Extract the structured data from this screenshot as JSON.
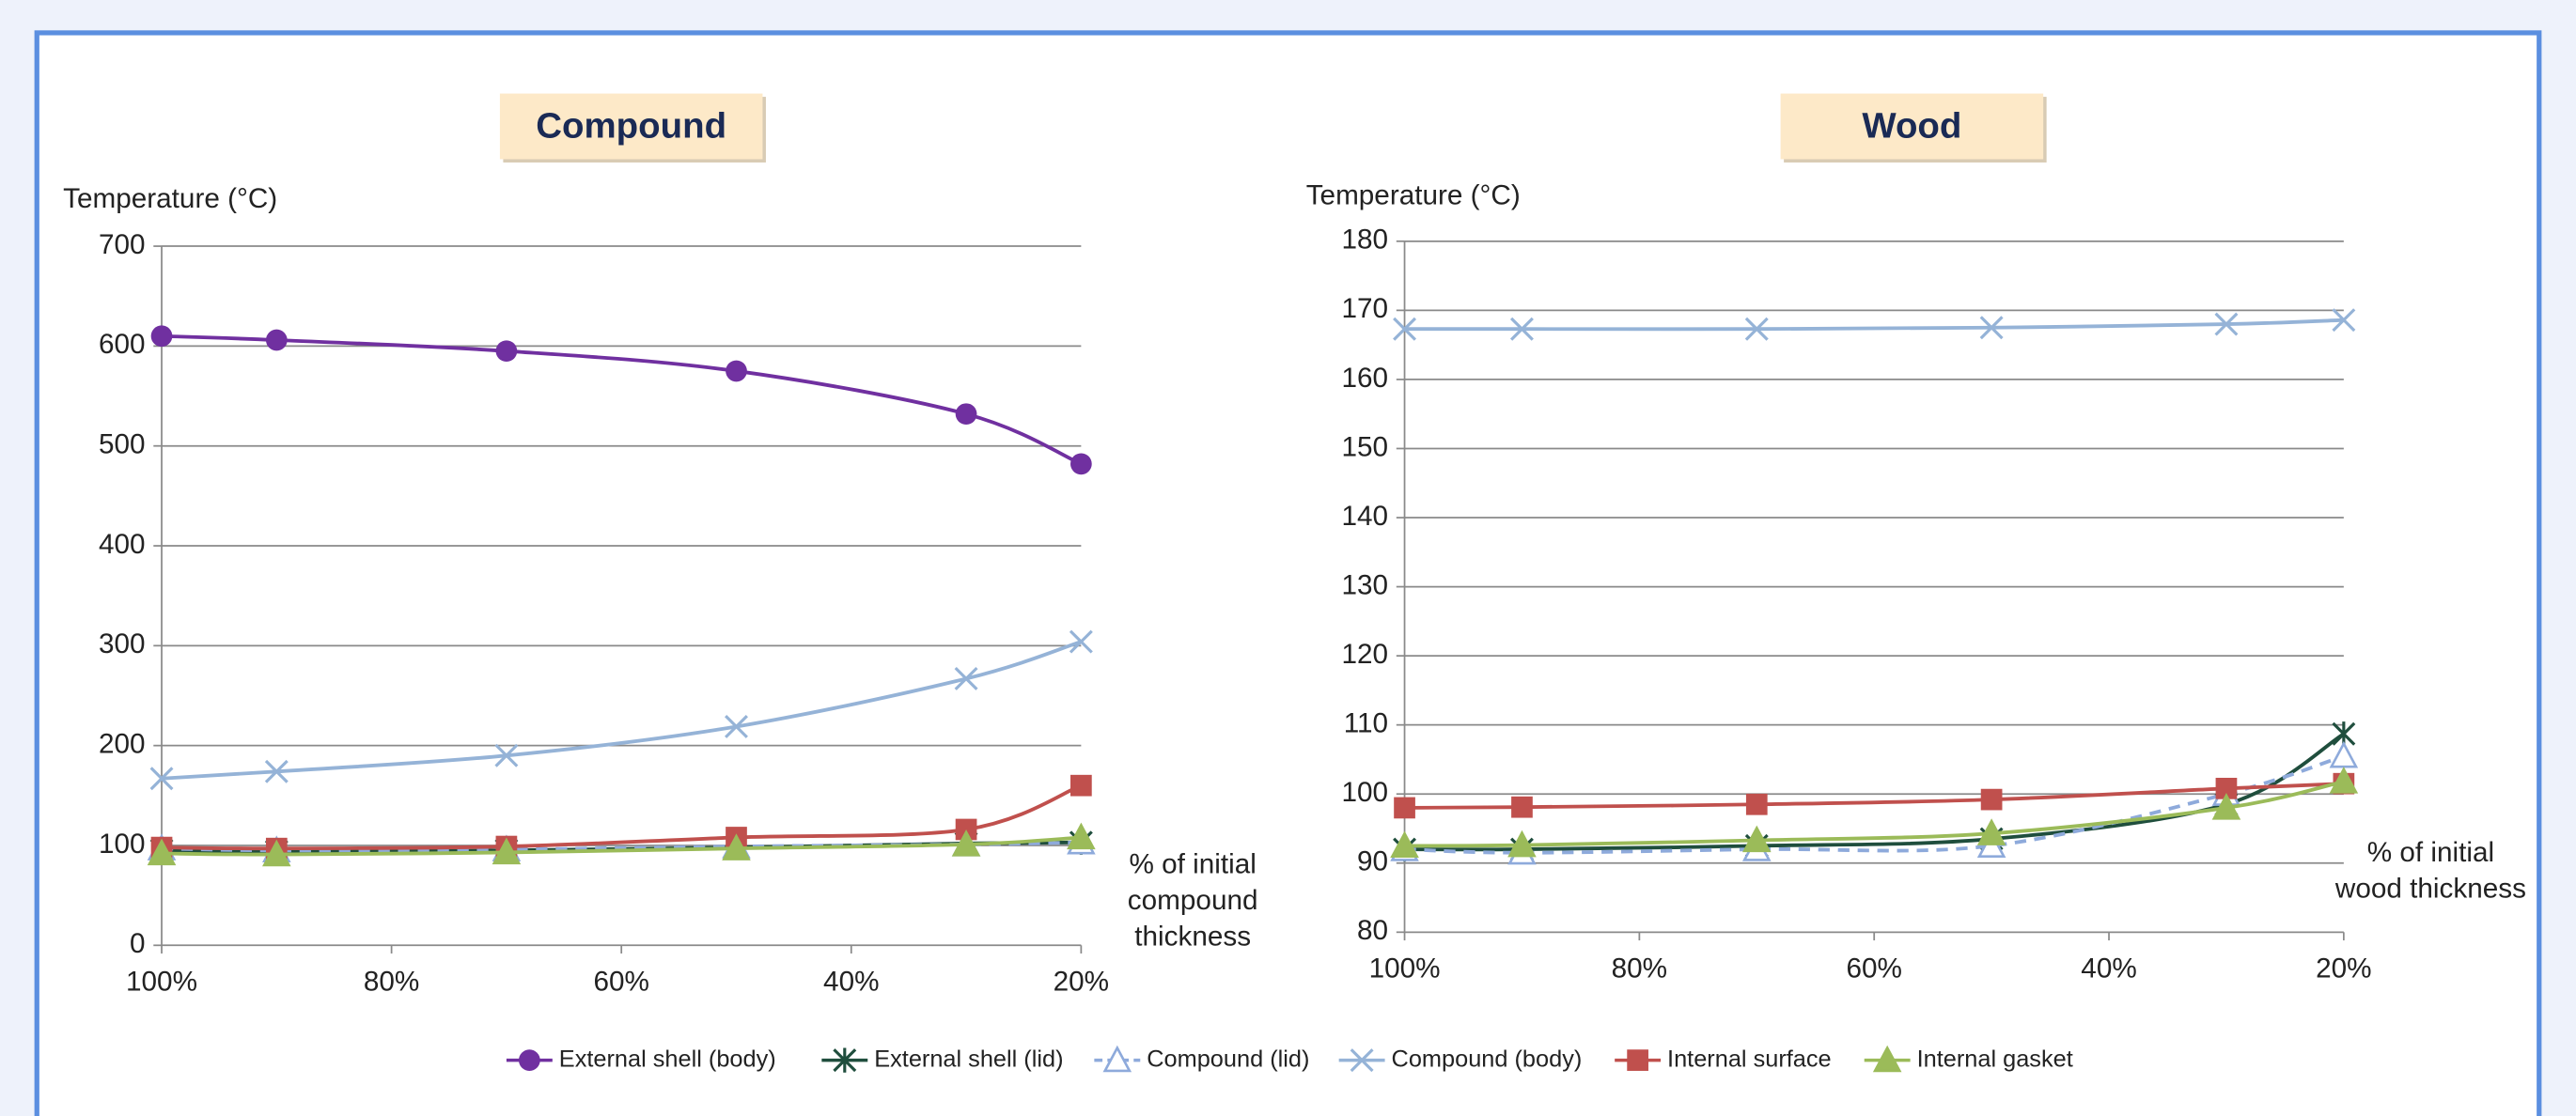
{
  "chart_data": [
    {
      "type": "line",
      "title": "Compound",
      "y_label": "Temperature (°C)",
      "x_label": "% of initial compound thickness",
      "x": [
        100,
        90,
        70,
        50,
        30,
        20
      ],
      "xlim": [
        100,
        20
      ],
      "xticks": [
        {
          "value": 100,
          "label": "100%"
        },
        {
          "value": 80,
          "label": "80%"
        },
        {
          "value": 60,
          "label": "60%"
        },
        {
          "value": 40,
          "label": "40%"
        },
        {
          "value": 20,
          "label": "20%"
        }
      ],
      "ylim": [
        0,
        700
      ],
      "yticks": [
        0,
        100,
        200,
        300,
        400,
        500,
        600,
        700
      ],
      "grid": true,
      "series": [
        {
          "name": "External shell (body)",
          "color": "#7030a0",
          "marker": "circle",
          "values": [
            610,
            606,
            595,
            575,
            532,
            482
          ]
        },
        {
          "name": "External shell (lid)",
          "color": "#1f4e3d",
          "marker": "star",
          "values": [
            95,
            94,
            95,
            98,
            102,
            103
          ]
        },
        {
          "name": "Compound (lid)",
          "color": "#8eaadb",
          "marker": "triangle-open",
          "dash": true,
          "values": [
            97,
            95,
            96,
            99,
            101,
            103
          ]
        },
        {
          "name": "Compound (body)",
          "color": "#95b3d7",
          "marker": "x",
          "values": [
            167,
            174,
            190,
            219,
            267,
            304
          ]
        },
        {
          "name": "Internal surface",
          "color": "#c0504d",
          "marker": "square",
          "values": [
            98,
            97,
            99,
            108,
            116,
            160
          ]
        },
        {
          "name": "Internal gasket",
          "color": "#9bbb59",
          "marker": "triangle",
          "values": [
            92,
            91,
            93,
            97,
            101,
            108
          ]
        }
      ]
    },
    {
      "type": "line",
      "title": "Wood",
      "y_label": "Temperature (°C)",
      "x_label": "% of initial wood thickness",
      "x": [
        100,
        90,
        70,
        50,
        30,
        20
      ],
      "xlim": [
        100,
        20
      ],
      "xticks": [
        {
          "value": 100,
          "label": "100%"
        },
        {
          "value": 80,
          "label": "80%"
        },
        {
          "value": 60,
          "label": "60%"
        },
        {
          "value": 40,
          "label": "40%"
        },
        {
          "value": 20,
          "label": "20%"
        }
      ],
      "ylim": [
        80,
        180
      ],
      "yticks": [
        80,
        90,
        100,
        110,
        120,
        130,
        140,
        150,
        160,
        170,
        180
      ],
      "grid": true,
      "series": [
        {
          "name": "External shell (lid)",
          "color": "#1f4e3d",
          "marker": "star",
          "values": [
            92,
            92,
            92.5,
            93.5,
            98.5,
            108.7
          ]
        },
        {
          "name": "Compound (lid)",
          "color": "#8eaadb",
          "marker": "triangle-open",
          "dash": true,
          "values": [
            92,
            91.5,
            92,
            92.5,
            100,
            105.5
          ]
        },
        {
          "name": "Compound (body)",
          "color": "#95b3d7",
          "marker": "x",
          "values": [
            167.3,
            167.3,
            167.3,
            167.5,
            168,
            168.6
          ]
        },
        {
          "name": "Internal surface",
          "color": "#c0504d",
          "marker": "square",
          "values": [
            98,
            98.1,
            98.5,
            99.2,
            100.8,
            101.5
          ]
        },
        {
          "name": "Internal gasket",
          "color": "#9bbb59",
          "marker": "triangle",
          "values": [
            92.5,
            92.6,
            93.3,
            94.3,
            98,
            101.8
          ]
        }
      ]
    }
  ]
}
